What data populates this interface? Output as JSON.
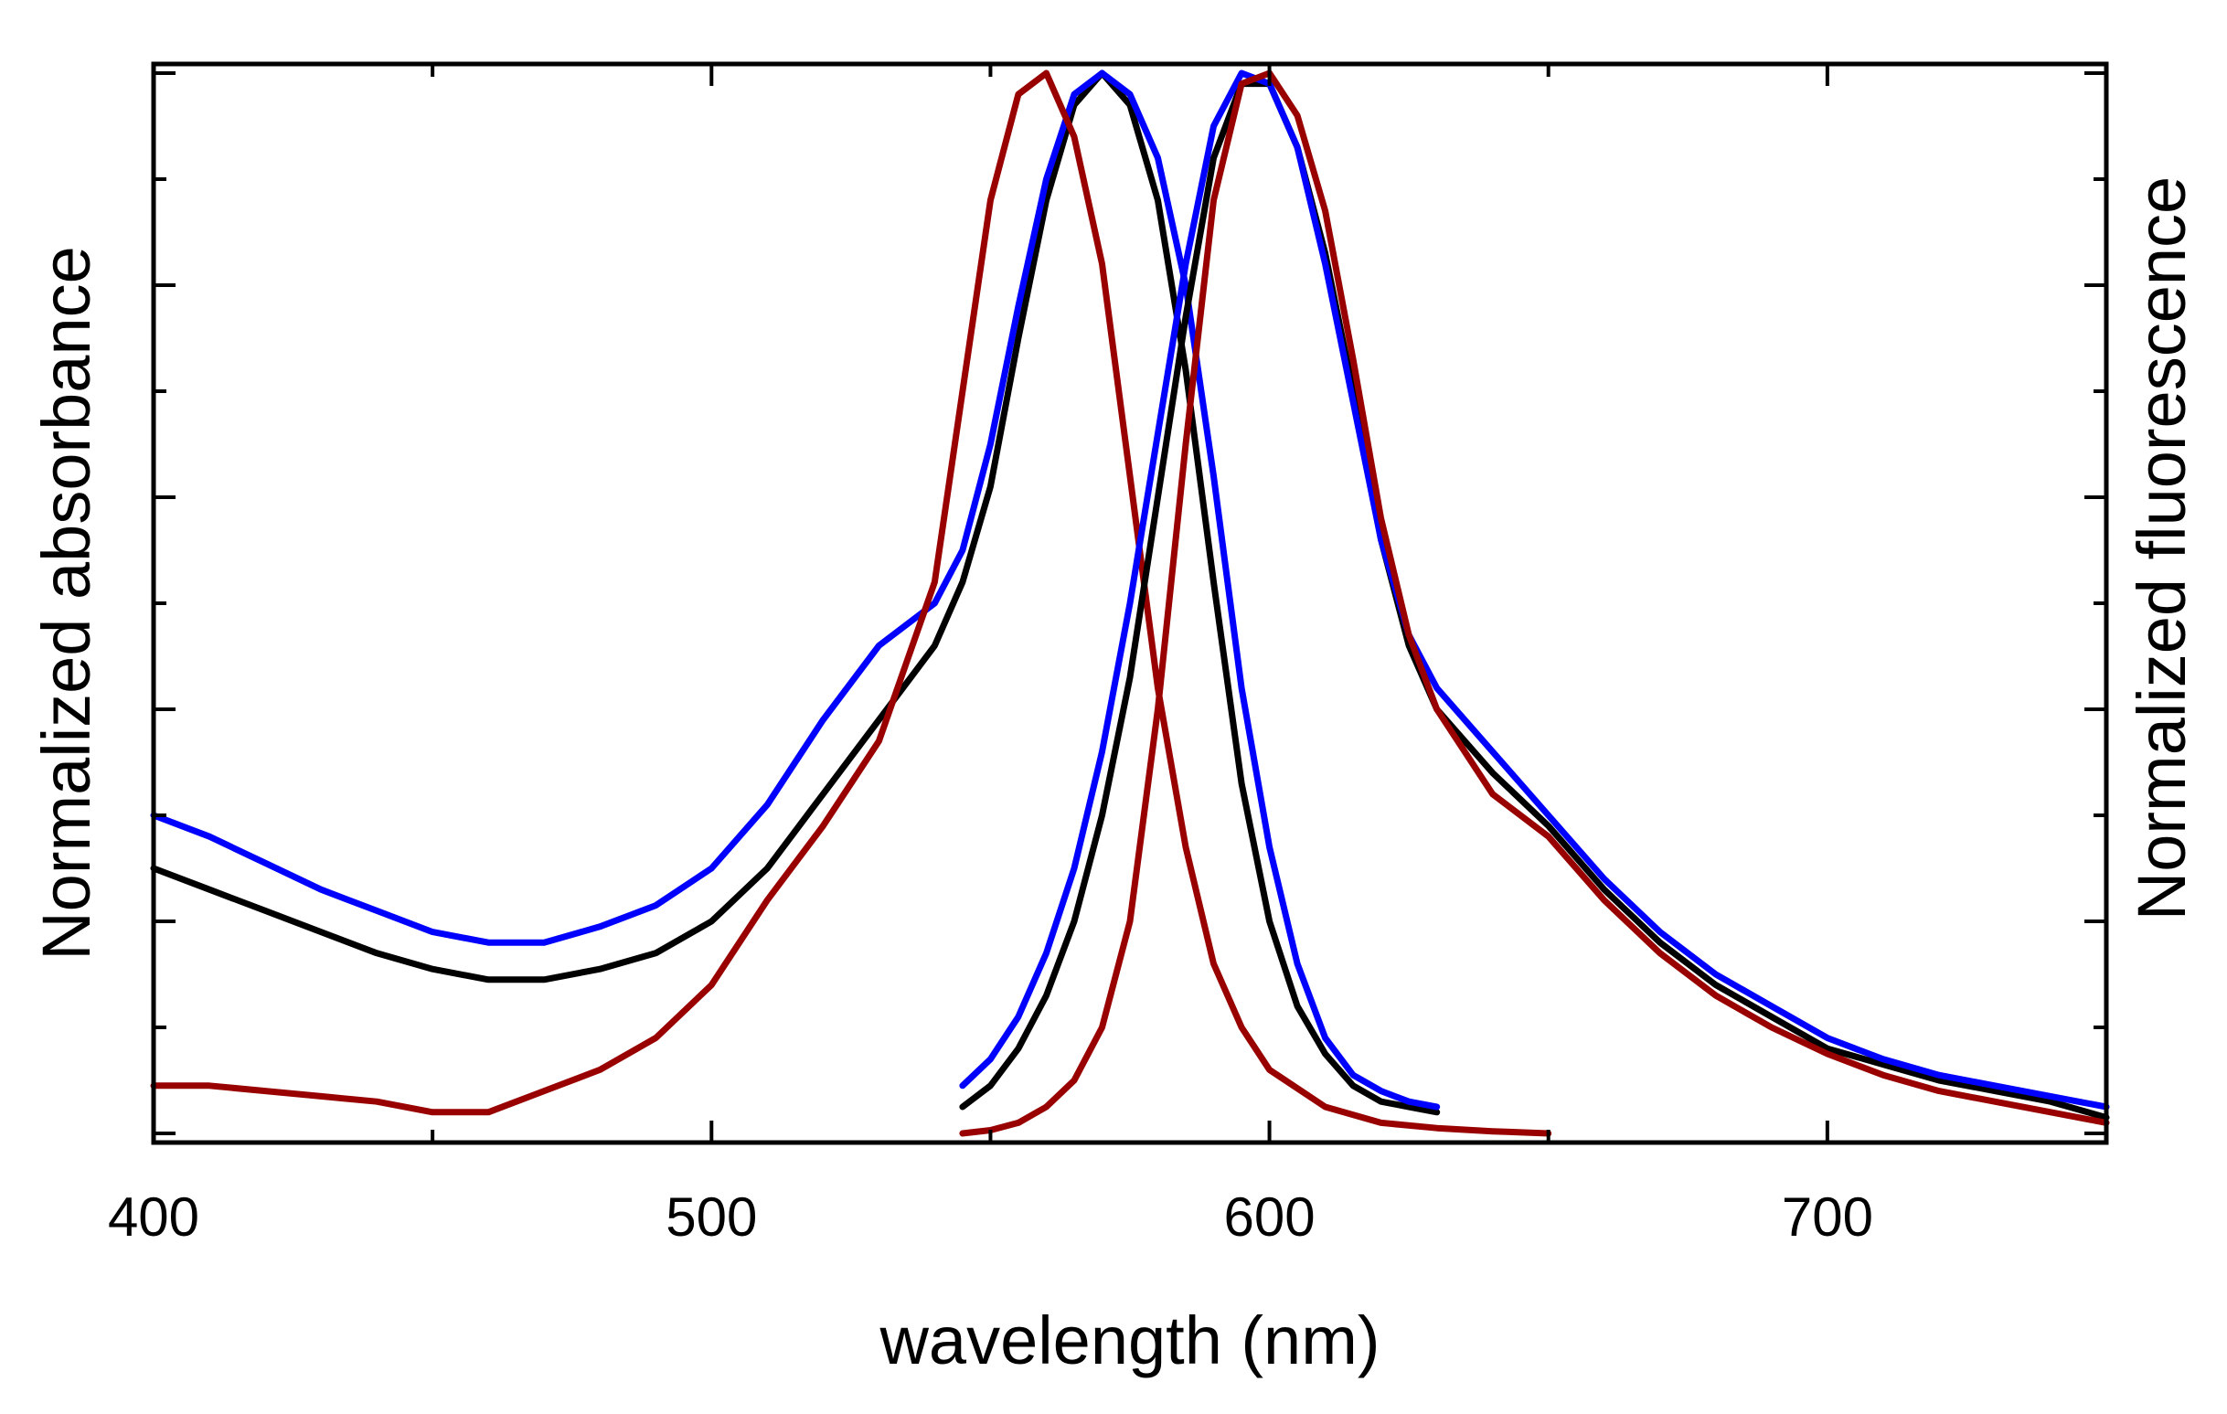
{
  "chart_data": {
    "type": "line",
    "title": "",
    "xlabel": "wavelength (nm)",
    "ylabel_left": "Normalized absorbance",
    "ylabel_right": "Normalized fluorescence",
    "xlim": [
      400,
      750
    ],
    "ylim": [
      0,
      1
    ],
    "x_ticks": [
      400,
      500,
      600,
      700
    ],
    "x_tick_labels": [
      "400",
      "500",
      "600",
      "700"
    ],
    "grid": false,
    "legend": "none",
    "colors": {
      "black": "#000000",
      "blue": "#0000ff",
      "red": "#990000",
      "frame": "#000000"
    },
    "series": [
      {
        "name": "absorbance-black",
        "group": "absorbance",
        "color": "#000000",
        "x": [
          400,
          410,
          420,
          430,
          440,
          450,
          460,
          470,
          480,
          490,
          500,
          510,
          520,
          530,
          540,
          545,
          550,
          555,
          560,
          565,
          570,
          575,
          580,
          585,
          590,
          595,
          600,
          605,
          610,
          615,
          620,
          625,
          630
        ],
        "y": [
          0.25,
          0.23,
          0.21,
          0.19,
          0.17,
          0.155,
          0.145,
          0.145,
          0.155,
          0.17,
          0.2,
          0.25,
          0.32,
          0.39,
          0.46,
          0.52,
          0.61,
          0.75,
          0.88,
          0.97,
          1.0,
          0.97,
          0.88,
          0.72,
          0.52,
          0.33,
          0.2,
          0.12,
          0.075,
          0.045,
          0.03,
          0.025,
          0.02
        ]
      },
      {
        "name": "absorbance-blue",
        "group": "absorbance",
        "color": "#0000ff",
        "x": [
          400,
          410,
          420,
          430,
          440,
          450,
          460,
          470,
          480,
          490,
          500,
          510,
          520,
          530,
          540,
          545,
          550,
          555,
          560,
          565,
          570,
          575,
          580,
          585,
          590,
          595,
          600,
          605,
          610,
          615,
          620,
          625,
          630
        ],
        "y": [
          0.3,
          0.28,
          0.255,
          0.23,
          0.21,
          0.19,
          0.18,
          0.18,
          0.195,
          0.215,
          0.25,
          0.31,
          0.39,
          0.46,
          0.5,
          0.55,
          0.65,
          0.78,
          0.9,
          0.98,
          1.0,
          0.98,
          0.92,
          0.8,
          0.62,
          0.42,
          0.27,
          0.16,
          0.09,
          0.055,
          0.04,
          0.03,
          0.025
        ]
      },
      {
        "name": "absorbance-red",
        "group": "absorbance",
        "color": "#990000",
        "x": [
          400,
          410,
          420,
          430,
          440,
          450,
          460,
          470,
          480,
          490,
          500,
          510,
          520,
          530,
          540,
          545,
          550,
          555,
          560,
          565,
          570,
          575,
          580,
          585,
          590,
          595,
          600,
          610,
          620,
          630,
          640,
          650
        ],
        "y": [
          0.045,
          0.045,
          0.04,
          0.035,
          0.03,
          0.02,
          0.02,
          0.04,
          0.06,
          0.09,
          0.14,
          0.22,
          0.29,
          0.37,
          0.52,
          0.7,
          0.88,
          0.98,
          1.0,
          0.94,
          0.82,
          0.62,
          0.42,
          0.27,
          0.16,
          0.1,
          0.06,
          0.025,
          0.01,
          0.005,
          0.002,
          0.0
        ]
      },
      {
        "name": "fluorescence-black",
        "group": "fluorescence",
        "color": "#000000",
        "x": [
          545,
          550,
          555,
          560,
          565,
          570,
          575,
          580,
          585,
          590,
          595,
          600,
          605,
          610,
          615,
          620,
          625,
          630,
          640,
          650,
          660,
          670,
          680,
          690,
          700,
          710,
          720,
          730,
          740,
          750
        ],
        "y": [
          0.025,
          0.045,
          0.08,
          0.13,
          0.2,
          0.3,
          0.43,
          0.6,
          0.77,
          0.92,
          0.99,
          0.99,
          0.93,
          0.83,
          0.7,
          0.56,
          0.46,
          0.4,
          0.34,
          0.29,
          0.23,
          0.18,
          0.14,
          0.11,
          0.08,
          0.065,
          0.05,
          0.04,
          0.03,
          0.015
        ]
      },
      {
        "name": "fluorescence-blue",
        "group": "fluorescence",
        "color": "#0000ff",
        "x": [
          545,
          550,
          555,
          560,
          565,
          570,
          575,
          580,
          585,
          590,
          595,
          600,
          605,
          610,
          615,
          620,
          625,
          630,
          640,
          650,
          660,
          670,
          680,
          690,
          700,
          710,
          720,
          730,
          740,
          750
        ],
        "y": [
          0.045,
          0.07,
          0.11,
          0.17,
          0.25,
          0.36,
          0.5,
          0.66,
          0.82,
          0.95,
          1.0,
          0.99,
          0.93,
          0.82,
          0.69,
          0.56,
          0.47,
          0.42,
          0.36,
          0.3,
          0.24,
          0.19,
          0.15,
          0.12,
          0.09,
          0.07,
          0.055,
          0.045,
          0.035,
          0.025
        ]
      },
      {
        "name": "fluorescence-red",
        "group": "fluorescence",
        "color": "#990000",
        "x": [
          545,
          550,
          555,
          560,
          565,
          570,
          575,
          580,
          585,
          590,
          595,
          600,
          605,
          610,
          615,
          620,
          625,
          630,
          640,
          650,
          660,
          670,
          680,
          690,
          700,
          710,
          720,
          730,
          740,
          750
        ],
        "y": [
          0.0,
          0.003,
          0.01,
          0.025,
          0.05,
          0.1,
          0.2,
          0.4,
          0.65,
          0.88,
          0.99,
          1.0,
          0.96,
          0.87,
          0.73,
          0.58,
          0.47,
          0.4,
          0.32,
          0.28,
          0.22,
          0.17,
          0.13,
          0.1,
          0.075,
          0.055,
          0.04,
          0.03,
          0.02,
          0.01
        ]
      }
    ]
  }
}
